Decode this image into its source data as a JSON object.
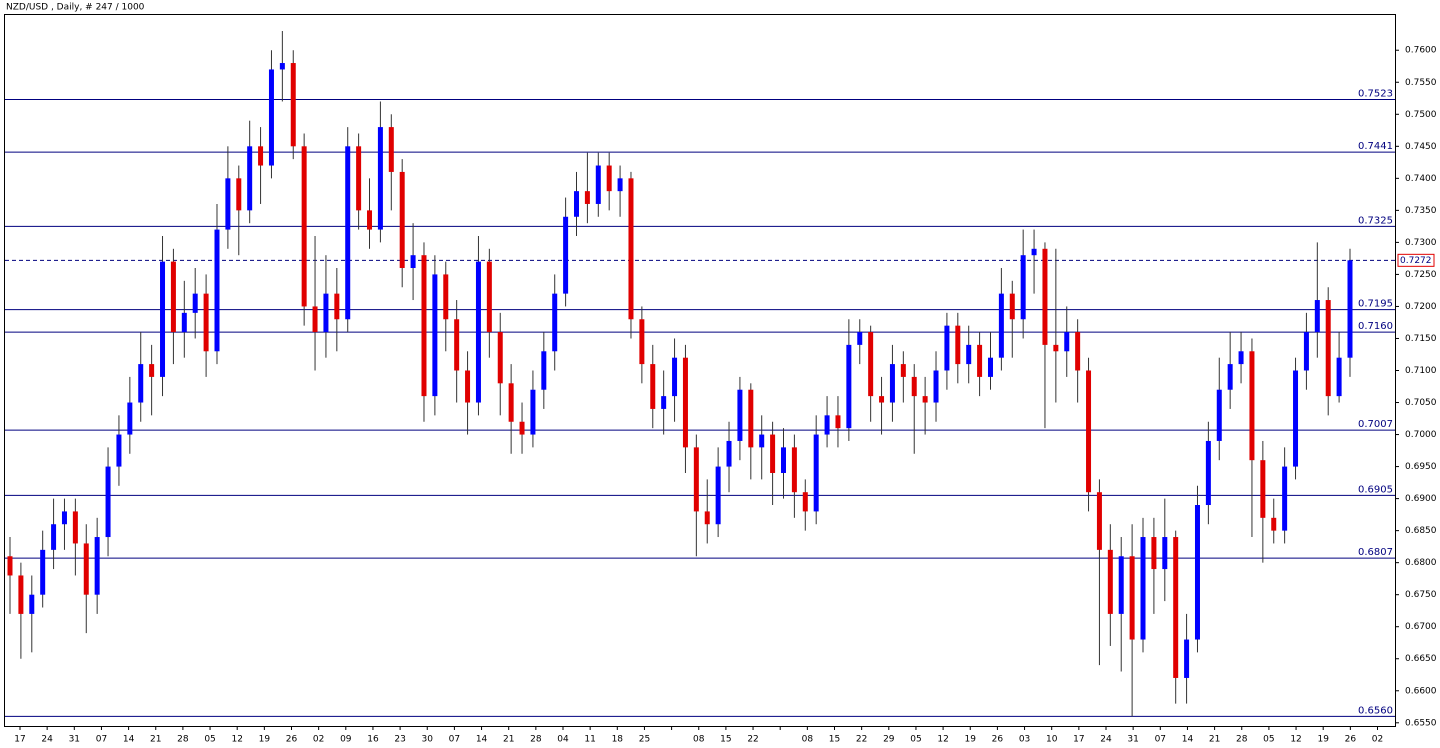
{
  "chart_data": {
    "type": "candlestick",
    "title": "NZD/USD , Daily, # 247 / 1000",
    "ylim": [
      0.6545,
      0.7655
    ],
    "yticks": [
      {
        "value": 0.655,
        "label": "0.6550"
      },
      {
        "value": 0.66,
        "label": "0.6600"
      },
      {
        "value": 0.665,
        "label": "0.6650"
      },
      {
        "value": 0.67,
        "label": "0.6700"
      },
      {
        "value": 0.675,
        "label": "0.6750"
      },
      {
        "value": 0.68,
        "label": "0.6800"
      },
      {
        "value": 0.685,
        "label": "0.6850"
      },
      {
        "value": 0.69,
        "label": "0.6900"
      },
      {
        "value": 0.695,
        "label": "0.6950"
      },
      {
        "value": 0.7,
        "label": "0.7000"
      },
      {
        "value": 0.705,
        "label": "0.7050"
      },
      {
        "value": 0.71,
        "label": "0.7100"
      },
      {
        "value": 0.715,
        "label": "0.7150"
      },
      {
        "value": 0.72,
        "label": "0.7200"
      },
      {
        "value": 0.725,
        "label": "0.7250"
      },
      {
        "value": 0.73,
        "label": "0.7300"
      },
      {
        "value": 0.735,
        "label": "0.7350"
      },
      {
        "value": 0.74,
        "label": "0.7400"
      },
      {
        "value": 0.745,
        "label": "0.7450"
      },
      {
        "value": 0.75,
        "label": "0.7500"
      },
      {
        "value": 0.755,
        "label": "0.7550"
      },
      {
        "value": 0.76,
        "label": "0.7600"
      }
    ],
    "x_labels": [
      "17",
      "24",
      "31",
      "07",
      "14",
      "21",
      "28",
      "05",
      "12",
      "19",
      "26",
      "02",
      "09",
      "16",
      "23",
      "30",
      "07",
      "14",
      "21",
      "28",
      "04",
      "11",
      "18",
      "25",
      null,
      "08",
      "15",
      "22",
      null,
      "08",
      "15",
      "22",
      "29",
      "05",
      "12",
      "19",
      "26",
      "03",
      "10",
      "17",
      "24",
      "31",
      "07",
      "14",
      "21",
      "28",
      "05",
      "12",
      "19",
      "26",
      "02"
    ],
    "levels": [
      {
        "value": 0.7523,
        "label": "0.7523"
      },
      {
        "value": 0.7441,
        "label": "0.7441"
      },
      {
        "value": 0.7325,
        "label": "0.7325"
      },
      {
        "value": 0.7195,
        "label": "0.7195"
      },
      {
        "value": 0.716,
        "label": "0.7160"
      },
      {
        "value": 0.7007,
        "label": "0.7007"
      },
      {
        "value": 0.6905,
        "label": "0.6905"
      },
      {
        "value": 0.6807,
        "label": "0.6807"
      },
      {
        "value": 0.656,
        "label": "0.6560"
      }
    ],
    "current_price": {
      "value": 0.7272,
      "label": "0.7272"
    },
    "up_color": "#0000ff",
    "down_color": "#e00000",
    "level_color": "#00007f",
    "open": [
      0.681,
      0.678,
      0.672,
      0.675,
      0.682,
      0.686,
      0.688,
      0.683,
      0.675,
      0.684,
      0.695,
      0.7,
      0.705,
      0.711,
      0.709,
      0.727,
      0.716,
      0.719,
      0.722,
      0.713,
      0.732,
      0.74,
      0.735,
      0.745,
      0.742,
      0.757,
      0.758,
      0.745,
      0.72,
      0.716,
      0.722,
      0.718,
      0.745,
      0.735,
      0.732,
      0.748,
      0.741,
      0.726,
      0.728,
      0.706,
      0.725,
      0.718,
      0.71,
      0.705,
      0.727,
      0.716,
      0.708,
      0.702,
      0.7,
      0.707,
      0.713,
      0.722,
      0.734,
      0.738,
      0.736,
      0.742,
      0.738,
      0.74,
      0.718,
      0.711,
      0.704,
      0.706,
      0.712,
      0.698,
      0.688,
      0.686,
      0.695,
      0.699,
      0.707,
      0.698,
      0.7,
      0.694,
      0.698,
      0.691,
      0.688,
      0.7,
      0.703,
      0.701,
      0.714,
      0.716,
      0.706,
      0.705,
      0.711,
      0.709,
      0.706,
      0.705,
      0.71,
      0.717,
      0.711,
      0.714,
      0.709,
      0.712,
      0.722,
      0.718,
      0.728,
      0.729,
      0.714,
      0.713,
      0.716,
      0.71,
      0.691,
      0.682,
      0.672,
      0.681,
      0.668,
      0.684,
      0.679,
      0.684,
      0.662,
      0.668,
      0.689,
      0.699,
      0.707,
      0.711,
      0.713,
      0.696,
      0.687,
      0.685,
      0.695,
      0.71,
      0.716,
      0.721,
      0.706,
      0.712
    ],
    "high": [
      0.684,
      0.68,
      0.678,
      0.685,
      0.69,
      0.69,
      0.69,
      0.686,
      0.687,
      0.698,
      0.703,
      0.709,
      0.716,
      0.714,
      0.731,
      0.729,
      0.724,
      0.726,
      0.725,
      0.736,
      0.745,
      0.742,
      0.749,
      0.748,
      0.76,
      0.763,
      0.76,
      0.747,
      0.731,
      0.728,
      0.726,
      0.748,
      0.747,
      0.74,
      0.752,
      0.75,
      0.743,
      0.733,
      0.73,
      0.728,
      0.727,
      0.721,
      0.713,
      0.731,
      0.729,
      0.719,
      0.711,
      0.705,
      0.71,
      0.716,
      0.725,
      0.737,
      0.741,
      0.744,
      0.744,
      0.744,
      0.742,
      0.741,
      0.72,
      0.714,
      0.71,
      0.715,
      0.714,
      0.7,
      0.693,
      0.698,
      0.702,
      0.709,
      0.708,
      0.703,
      0.702,
      0.701,
      0.7,
      0.693,
      0.703,
      0.706,
      0.706,
      0.718,
      0.718,
      0.717,
      0.709,
      0.714,
      0.713,
      0.711,
      0.709,
      0.713,
      0.719,
      0.719,
      0.717,
      0.716,
      0.716,
      0.726,
      0.724,
      0.732,
      0.732,
      0.73,
      0.729,
      0.72,
      0.718,
      0.712,
      0.693,
      0.686,
      0.684,
      0.686,
      0.687,
      0.687,
      0.69,
      0.685,
      0.672,
      0.692,
      0.702,
      0.712,
      0.716,
      0.716,
      0.715,
      0.699,
      0.69,
      0.698,
      0.712,
      0.719,
      0.73,
      0.723,
      0.716,
      0.729
    ],
    "low": [
      0.672,
      0.665,
      0.666,
      0.673,
      0.679,
      0.682,
      0.678,
      0.669,
      0.672,
      0.681,
      0.692,
      0.697,
      0.702,
      0.703,
      0.706,
      0.711,
      0.712,
      0.715,
      0.709,
      0.711,
      0.729,
      0.728,
      0.733,
      0.736,
      0.74,
      0.752,
      0.743,
      0.717,
      0.71,
      0.712,
      0.713,
      0.716,
      0.732,
      0.729,
      0.73,
      0.735,
      0.723,
      0.721,
      0.702,
      0.703,
      0.713,
      0.705,
      0.7,
      0.703,
      0.712,
      0.703,
      0.697,
      0.697,
      0.698,
      0.704,
      0.71,
      0.72,
      0.731,
      0.733,
      0.734,
      0.735,
      0.734,
      0.715,
      0.708,
      0.701,
      0.7,
      0.702,
      0.694,
      0.681,
      0.683,
      0.684,
      0.691,
      0.696,
      0.693,
      0.693,
      0.689,
      0.69,
      0.687,
      0.685,
      0.686,
      0.698,
      0.698,
      0.699,
      0.711,
      0.702,
      0.7,
      0.702,
      0.705,
      0.697,
      0.7,
      0.702,
      0.707,
      0.708,
      0.708,
      0.706,
      0.707,
      0.71,
      0.712,
      0.715,
      0.722,
      0.701,
      0.705,
      0.709,
      0.705,
      0.688,
      0.664,
      0.667,
      0.663,
      0.656,
      0.666,
      0.672,
      0.674,
      0.658,
      0.658,
      0.666,
      0.686,
      0.696,
      0.704,
      0.708,
      0.684,
      0.68,
      0.683,
      0.683,
      0.693,
      0.707,
      0.712,
      0.703,
      0.705,
      0.709
    ],
    "close": [
      0.678,
      0.672,
      0.675,
      0.682,
      0.686,
      0.688,
      0.683,
      0.675,
      0.684,
      0.695,
      0.7,
      0.705,
      0.711,
      0.709,
      0.727,
      0.716,
      0.719,
      0.722,
      0.713,
      0.732,
      0.74,
      0.735,
      0.745,
      0.742,
      0.757,
      0.758,
      0.745,
      0.72,
      0.716,
      0.722,
      0.718,
      0.745,
      0.735,
      0.732,
      0.748,
      0.741,
      0.726,
      0.728,
      0.706,
      0.725,
      0.718,
      0.71,
      0.705,
      0.727,
      0.716,
      0.708,
      0.702,
      0.7,
      0.707,
      0.713,
      0.722,
      0.734,
      0.738,
      0.736,
      0.742,
      0.738,
      0.74,
      0.718,
      0.711,
      0.704,
      0.706,
      0.712,
      0.698,
      0.688,
      0.686,
      0.695,
      0.699,
      0.707,
      0.698,
      0.7,
      0.694,
      0.698,
      0.691,
      0.688,
      0.7,
      0.703,
      0.701,
      0.714,
      0.716,
      0.706,
      0.705,
      0.711,
      0.709,
      0.706,
      0.705,
      0.71,
      0.717,
      0.711,
      0.714,
      0.709,
      0.712,
      0.722,
      0.718,
      0.728,
      0.729,
      0.714,
      0.713,
      0.716,
      0.71,
      0.691,
      0.682,
      0.672,
      0.681,
      0.668,
      0.684,
      0.679,
      0.684,
      0.662,
      0.668,
      0.689,
      0.699,
      0.707,
      0.711,
      0.713,
      0.696,
      0.687,
      0.685,
      0.695,
      0.71,
      0.716,
      0.721,
      0.706,
      0.712,
      0.7272
    ]
  }
}
